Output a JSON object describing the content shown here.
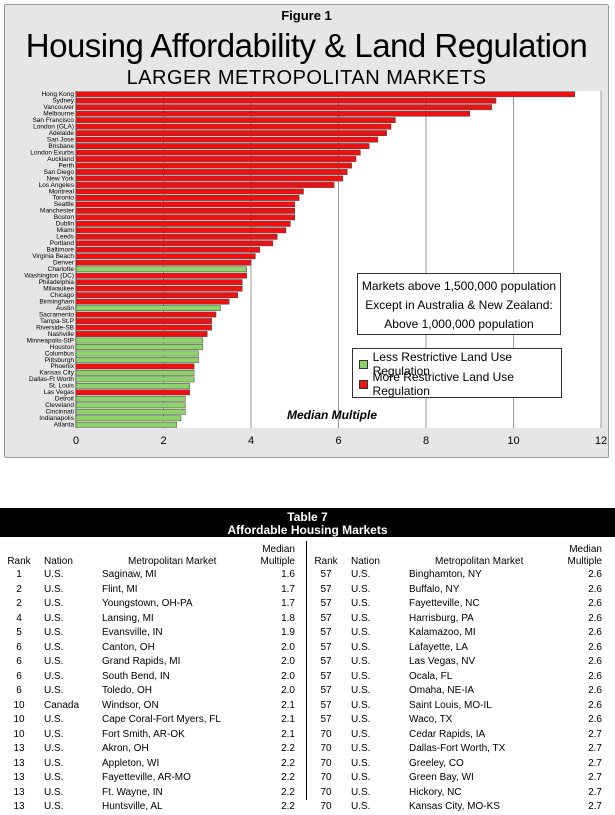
{
  "figure": {
    "label": "Figure 1",
    "title": "Housing Affordability & Land Regulation",
    "subtitle": "LARGER METROPOLITAN MARKETS",
    "notes": [
      "Markets above 1,500,000 population",
      "Except in Australia & New Zealand:",
      "Above 1,000,000 population"
    ],
    "legend": [
      {
        "label": "Less Restrictive Land Use Regulation",
        "color": "#8fd16a"
      },
      {
        "label": "More Restrictive Land Use Regulation",
        "color": "#ee1111"
      }
    ],
    "median_label": "Median Multiple"
  },
  "chart_data": {
    "type": "bar",
    "orientation": "horizontal",
    "title": "Housing Affordability & Land Regulation",
    "subtitle": "LARGER METROPOLITAN MARKETS",
    "xlabel": "Median Multiple",
    "xlim": [
      0,
      12
    ],
    "xticks": [
      0,
      2,
      4,
      6,
      8,
      10,
      12
    ],
    "grid": "vertical",
    "categories": [
      "Hong Kong",
      "Sydney",
      "Vancouver",
      "Melbourne",
      "San Francisco",
      "London (GLA)",
      "Adelaide",
      "San Jose",
      "Brisbane",
      "London Exurbs",
      "Auckland",
      "Perth",
      "San Diego",
      "New York",
      "Los Angeles",
      "Montreal",
      "Toronto",
      "Seattle",
      "Manchester",
      "Boston",
      "Dublin",
      "Miami",
      "Leeds",
      "Portland",
      "Baltimore",
      "Virginia Beach",
      "Denver",
      "Charlotte",
      "Washington (DC)",
      "Philadelphia",
      "Milwaukee",
      "Chicago",
      "Birmingham",
      "Austin",
      "Sacramento",
      "Tampa-St.P",
      "Riverside-SB",
      "Nashville",
      "Minneapolis-StP",
      "Houston",
      "Columbus",
      "Pittsburgh",
      "Phoenix",
      "Kansas City",
      "Dallas-Ft Worth",
      "St. Louis",
      "Las Vegas",
      "Detroit",
      "Cleveland",
      "Cincinnati",
      "Indianapolis",
      "Atlanta"
    ],
    "values": [
      11.4,
      9.6,
      9.5,
      9.0,
      7.3,
      7.2,
      7.1,
      6.9,
      6.7,
      6.5,
      6.4,
      6.3,
      6.2,
      6.1,
      5.9,
      5.2,
      5.1,
      5.0,
      5.0,
      5.0,
      4.9,
      4.8,
      4.6,
      4.5,
      4.2,
      4.1,
      4.0,
      3.9,
      3.9,
      3.8,
      3.8,
      3.7,
      3.5,
      3.3,
      3.2,
      3.1,
      3.1,
      3.0,
      2.9,
      2.9,
      2.8,
      2.8,
      2.7,
      2.7,
      2.7,
      2.6,
      2.6,
      2.5,
      2.5,
      2.5,
      2.4,
      2.3
    ],
    "restriction": [
      "more",
      "more",
      "more",
      "more",
      "more",
      "more",
      "more",
      "more",
      "more",
      "more",
      "more",
      "more",
      "more",
      "more",
      "more",
      "more",
      "more",
      "more",
      "more",
      "more",
      "more",
      "more",
      "more",
      "more",
      "more",
      "more",
      "more",
      "less",
      "more",
      "more",
      "more",
      "more",
      "more",
      "less",
      "more",
      "more",
      "more",
      "more",
      "less",
      "less",
      "less",
      "less",
      "more",
      "less",
      "less",
      "less",
      "more",
      "less",
      "less",
      "less",
      "less",
      "less"
    ],
    "series": [
      {
        "name": "Less Restrictive Land Use Regulation",
        "color": "#8fd16a"
      },
      {
        "name": "More Restrictive Land Use Regulation",
        "color": "#ee1111"
      }
    ]
  },
  "table": {
    "title": "Table 7",
    "subtitle": "Affordable Housing Markets",
    "headers": {
      "rank": "Rank",
      "nation": "Nation",
      "metro": "Metropolitan Market",
      "mult1": "Median",
      "mult2": "Multiple"
    },
    "left_rows": [
      [
        "1",
        "U.S.",
        "Saginaw, MI",
        "1.6"
      ],
      [
        "2",
        "U.S.",
        "Flint, MI",
        "1.7"
      ],
      [
        "2",
        "U.S.",
        "Youngstown, OH-PA",
        "1.7"
      ],
      [
        "4",
        "U.S.",
        "Lansing, MI",
        "1.8"
      ],
      [
        "5",
        "U.S.",
        "Evansville, IN",
        "1.9"
      ],
      [
        "6",
        "U.S.",
        "Canton, OH",
        "2.0"
      ],
      [
        "6",
        "U.S.",
        "Grand Rapids, MI",
        "2.0"
      ],
      [
        "6",
        "U.S.",
        "South Bend, IN",
        "2.0"
      ],
      [
        "6",
        "U.S.",
        "Toledo, OH",
        "2.0"
      ],
      [
        "10",
        "Canada",
        "Windsor, ON",
        "2.1"
      ],
      [
        "10",
        "U.S.",
        "Cape Coral-Fort Myers, FL",
        "2.1"
      ],
      [
        "10",
        "U.S.",
        "Fort Smith, AR-OK",
        "2.1"
      ],
      [
        "13",
        "U.S.",
        "Akron, OH",
        "2.2"
      ],
      [
        "13",
        "U.S.",
        "Appleton, WI",
        "2.2"
      ],
      [
        "13",
        "U.S.",
        "Fayetteville, AR-MO",
        "2.2"
      ],
      [
        "13",
        "U.S.",
        "Ft. Wayne, IN",
        "2.2"
      ],
      [
        "13",
        "U.S.",
        "Huntsville, AL",
        "2.2"
      ]
    ],
    "right_rows": [
      [
        "57",
        "U.S.",
        "Binghamton, NY",
        "2.6"
      ],
      [
        "57",
        "U.S.",
        "Buffalo, NY",
        "2.6"
      ],
      [
        "57",
        "U.S.",
        "Fayetteville, NC",
        "2.6"
      ],
      [
        "57",
        "U.S.",
        "Harrisburg, PA",
        "2.6"
      ],
      [
        "57",
        "U.S.",
        "Kalamazoo, MI",
        "2.6"
      ],
      [
        "57",
        "U.S.",
        "Lafayette, LA",
        "2.6"
      ],
      [
        "57",
        "U.S.",
        "Las Vegas, NV",
        "2.6"
      ],
      [
        "57",
        "U.S.",
        "Ocala, FL",
        "2.6"
      ],
      [
        "57",
        "U.S.",
        "Omaha, NE-IA",
        "2.6"
      ],
      [
        "57",
        "U.S.",
        "Saint Louis, MO-IL",
        "2.6"
      ],
      [
        "57",
        "U.S.",
        "Waco, TX",
        "2.6"
      ],
      [
        "70",
        "U.S.",
        "Cedar Rapids, IA",
        "2.7"
      ],
      [
        "70",
        "U.S.",
        "Dallas-Fort Worth, TX",
        "2.7"
      ],
      [
        "70",
        "U.S.",
        "Greeley, CO",
        "2.7"
      ],
      [
        "70",
        "U.S.",
        "Green Bay, WI",
        "2.7"
      ],
      [
        "70",
        "U.S.",
        "Hickory, NC",
        "2.7"
      ],
      [
        "70",
        "U.S.",
        "Kansas City, MO-KS",
        "2.7"
      ]
    ]
  }
}
